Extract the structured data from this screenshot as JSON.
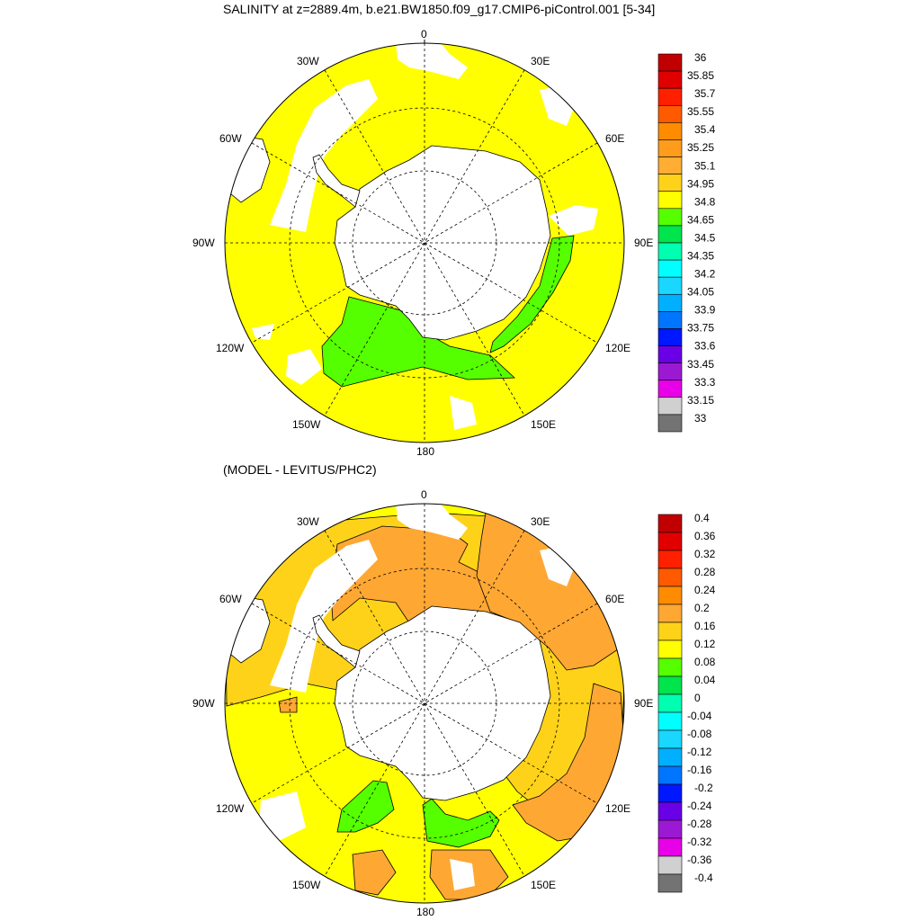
{
  "map_top": {
    "title": "SALINITY at z=2889.4m, b.e21.BW1850.f09_g17.CMIP6-piControl.001 [5-34]",
    "lon_labels": {
      "n": "0",
      "nw30": "30W",
      "ne30": "30E",
      "nw60": "60W",
      "ne60": "60E",
      "w90": "90W",
      "e90": "90E",
      "sw120": "120W",
      "se120": "120E",
      "sw150": "150W",
      "se150": "150E",
      "s": "180"
    },
    "colorbar_labels": [
      "36",
      "35.85",
      "35.7",
      "35.55",
      "35.4",
      "35.25",
      "35.1",
      "34.95",
      "34.8",
      "34.65",
      "34.5",
      "34.35",
      "34.2",
      "34.05",
      "33.9",
      "33.75",
      "33.6",
      "33.45",
      "33.3",
      "33.15",
      "33"
    ],
    "colorbar_colors": [
      "#c00000",
      "#e00000",
      "#ff2000",
      "#ff5a00",
      "#ff8c00",
      "#ff9c1c",
      "#ffad33",
      "#ffd21a",
      "#ffff00",
      "#55ff00",
      "#00e44c",
      "#00ffb0",
      "#00ffff",
      "#1ad7ff",
      "#00b0ff",
      "#0075ff",
      "#0018ff",
      "#6a00e6",
      "#9c19d4",
      "#e800e8",
      "#d0d0d0",
      "#737373"
    ]
  },
  "map_bottom": {
    "title": "(MODEL - LEVITUS/PHC2)",
    "lon_labels": {
      "n": "0",
      "nw30": "30W",
      "ne30": "30E",
      "nw60": "60W",
      "ne60": "60E",
      "w90": "90W",
      "e90": "90E",
      "sw120": "120W",
      "se120": "120E",
      "sw150": "150W",
      "se150": "150E",
      "s": "180"
    },
    "colorbar_labels": [
      "0.4",
      "0.36",
      "0.32",
      "0.28",
      "0.24",
      "0.2",
      "0.16",
      "0.12",
      "0.08",
      "0.04",
      "0",
      "-0.04",
      "-0.08",
      "-0.12",
      "-0.16",
      "-0.2",
      "-0.24",
      "-0.28",
      "-0.32",
      "-0.36",
      "-0.4"
    ],
    "colorbar_colors": [
      "#c00000",
      "#e00000",
      "#ff2000",
      "#ff5a00",
      "#ff8c00",
      "#ffa733",
      "#ffd21a",
      "#ffff00",
      "#55ff00",
      "#00e44c",
      "#00ffb0",
      "#00ffff",
      "#1ad7ff",
      "#00b0ff",
      "#0075ff",
      "#0018ff",
      "#6a00e6",
      "#9c19d4",
      "#e800e8",
      "#d0d0d0",
      "#737373"
    ]
  },
  "colors": {
    "ocean_top": "#ffff00",
    "ocean_bottom_base": "#ffff00",
    "anomaly_light": "#ffd21a",
    "anomaly_orange": "#ffa733",
    "green": "#55ff00",
    "land": "#ffffff",
    "outline": "#000000"
  }
}
